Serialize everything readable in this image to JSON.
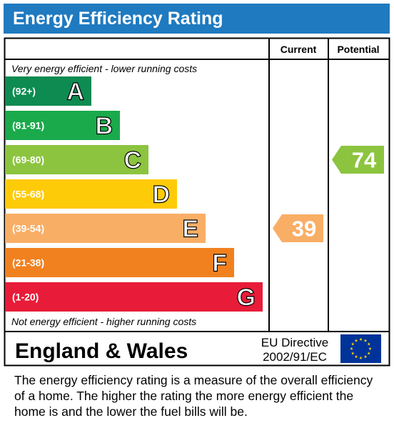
{
  "title": "Energy Efficiency Rating",
  "columns": {
    "current": "Current",
    "potential": "Potential"
  },
  "top_note": "Very energy efficient - lower running costs",
  "bottom_note": "Not energy efficient - higher running costs",
  "country": "England & Wales",
  "directive_line1": "EU Directive",
  "directive_line2": "2002/91/EC",
  "footer_text": "The energy efficiency rating is a measure of the overall efficiency of a home.  The higher the rating the more energy efficient the home is and the lower the fuel bills will be.",
  "chart_data": {
    "type": "bar",
    "categories": [
      "A",
      "B",
      "C",
      "D",
      "E",
      "F",
      "G"
    ],
    "bands": [
      {
        "letter": "A",
        "range": "(92+)",
        "color": "#0e8b51"
      },
      {
        "letter": "B",
        "range": "(81-91)",
        "color": "#1aaa4b"
      },
      {
        "letter": "C",
        "range": "(69-80)",
        "color": "#8cc43f"
      },
      {
        "letter": "D",
        "range": "(55-68)",
        "color": "#fecb08"
      },
      {
        "letter": "E",
        "range": "(39-54)",
        "color": "#f9ae66"
      },
      {
        "letter": "F",
        "range": "(21-38)",
        "color": "#f1811f"
      },
      {
        "letter": "G",
        "range": "(1-20)",
        "color": "#e81c39"
      }
    ],
    "current": {
      "value": 39,
      "band": "E",
      "color": "#f9ae66"
    },
    "potential": {
      "value": 74,
      "band": "C",
      "color": "#8cc43f"
    }
  }
}
